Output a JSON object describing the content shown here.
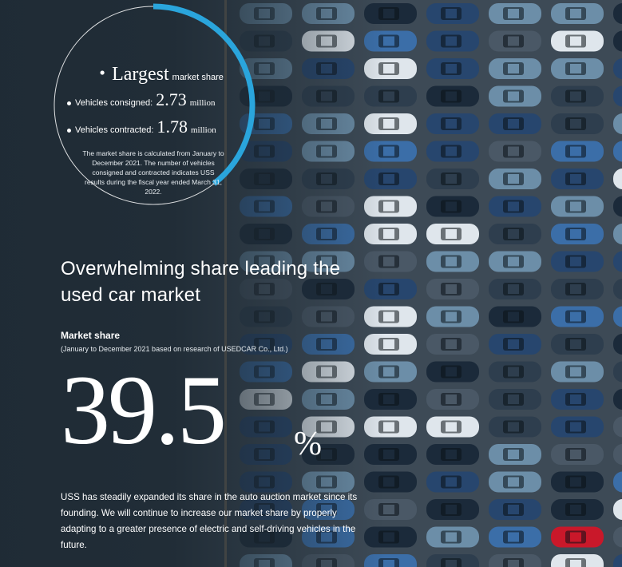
{
  "badge": {
    "title_main": "・Largest",
    "title_sub": "market share",
    "stats": [
      {
        "label": "Vehicles consigned:",
        "value": "2.73",
        "unit": "million"
      },
      {
        "label": "Vehicles contracted:",
        "value": "1.78",
        "unit": "million"
      }
    ],
    "note": "The market share is calculated from January to December 2021. The number of vehicles consigned and contracted indicates USS results during the fiscal year ended March 31, 2022.",
    "ring_fraction": 0.395,
    "ring_color": "#2aa5dc"
  },
  "headline": "Overwhelming share leading the used car market",
  "market_share": {
    "label": "Market share",
    "source": "(January to December 2021 based on research of USEDCAR Co., Ltd.)",
    "value": "39.5",
    "unit": "%"
  },
  "body": "USS has steadily expanded its share in the auto auction market since its founding. We will continue to increase our market share by properly adapting to a greater presence of electric and self-driving vehicles in the future.",
  "background": {
    "image": "aerial-parking-lot-of-cars",
    "car_colors": [
      "#1b2a3a",
      "#27466e",
      "#3b6ea8",
      "#6c8ea8",
      "#dfe6ec",
      "#4a5866",
      "#2e3e4e",
      "#c9182a"
    ]
  }
}
